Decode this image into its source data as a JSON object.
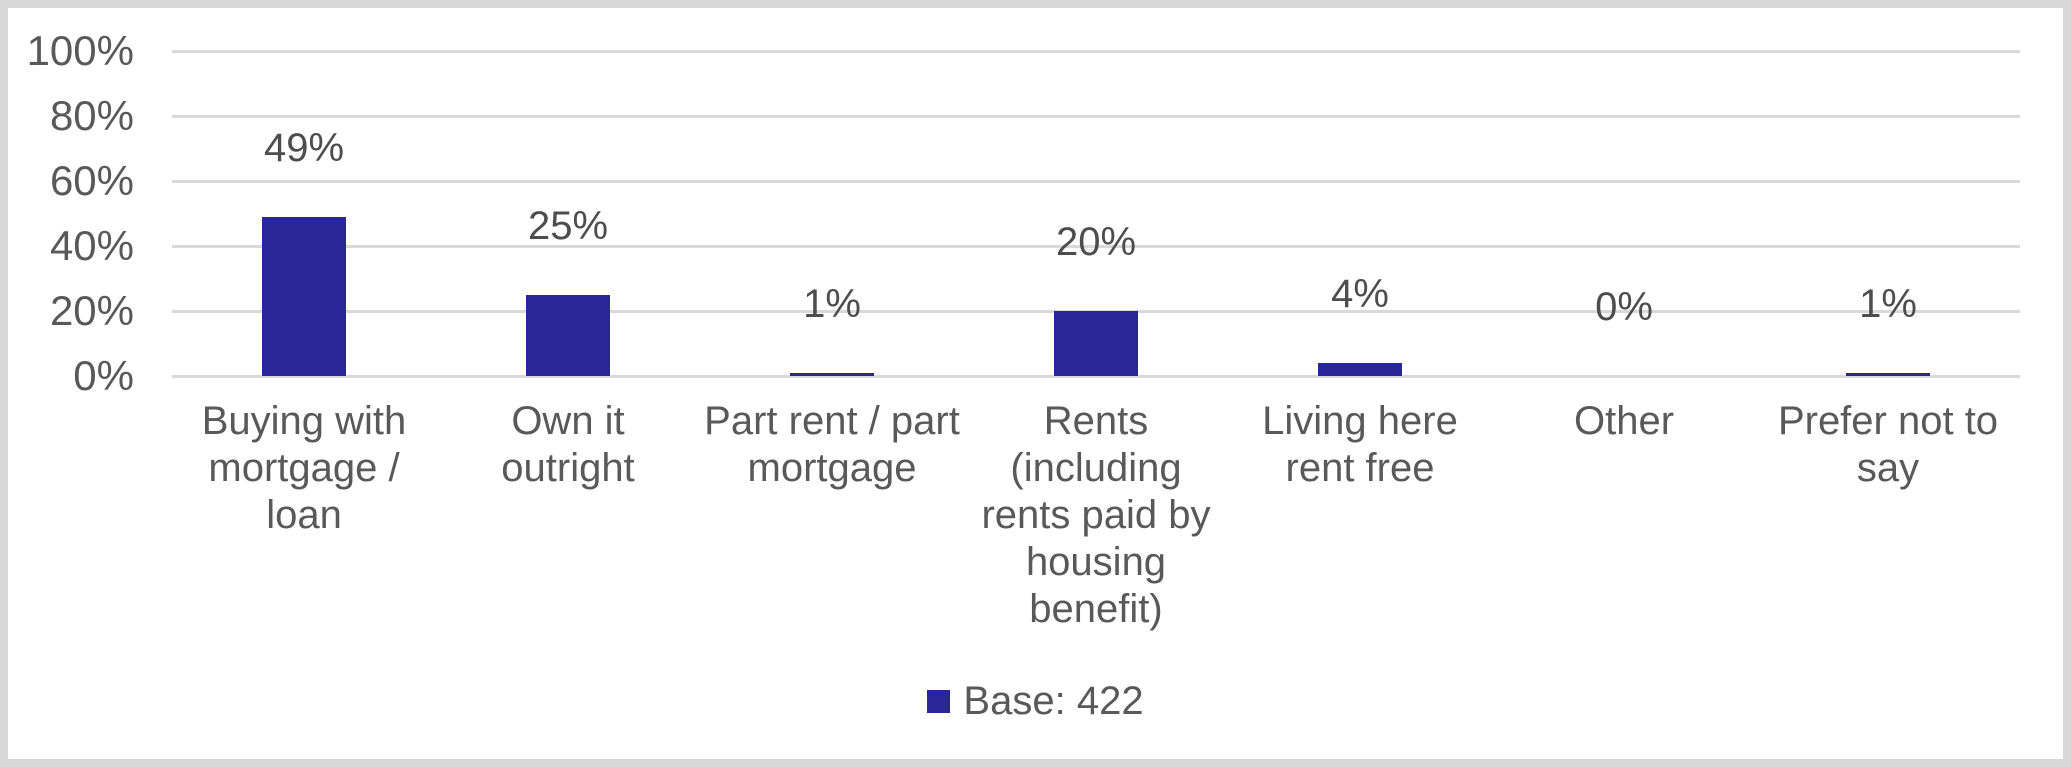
{
  "chart_data": {
    "type": "bar",
    "title": "",
    "categories": [
      "Buying with mortgage / loan",
      "Own it outright",
      "Part rent / part mortgage",
      "Rents (including rents paid by housing benefit)",
      "Living here rent free",
      "Other",
      "Prefer not to say"
    ],
    "category_label_lines": [
      "Buying with\nmortgage /\nloan",
      "Own it\noutright",
      "Part rent / part\nmortgage",
      "Rents\n(including\nrents paid by\nhousing\nbenefit)",
      "Living here\nrent free",
      "Other",
      "Prefer not to\nsay"
    ],
    "values": [
      49,
      25,
      1,
      20,
      4,
      0,
      1
    ],
    "value_labels": [
      "49%",
      "25%",
      "1%",
      "20%",
      "4%",
      "0%",
      "1%"
    ],
    "xlabel": "",
    "ylabel": "",
    "ylim": [
      0,
      100
    ],
    "yticks": [
      {
        "label": "0%",
        "value": 0
      },
      {
        "label": "20%",
        "value": 20
      },
      {
        "label": "40%",
        "value": 40
      },
      {
        "label": "60%",
        "value": 60
      },
      {
        "label": "80%",
        "value": 80
      },
      {
        "label": "100%",
        "value": 100
      }
    ],
    "grid": true,
    "legend": {
      "label": "Base: 422",
      "position": "bottom"
    },
    "colors": {
      "bar": "#282699",
      "axis_text": "#595959",
      "data_label": "#4d4d4d",
      "gridline": "#D9D9D9",
      "frame_border": "#D7D7D7",
      "background": "#FFFFFF"
    }
  }
}
